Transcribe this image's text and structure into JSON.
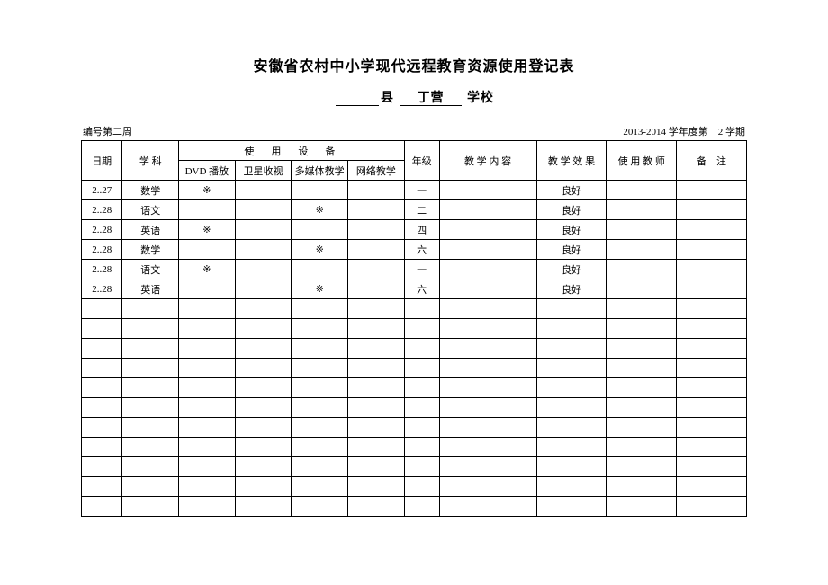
{
  "title": "安徽省农村中小学现代远程教育资源使用登记表",
  "subtitle": {
    "county_blank": "",
    "county_label": "县",
    "school_name": "丁营",
    "school_label": "学校"
  },
  "meta": {
    "left": "编号第二周",
    "right": "2013-2014 学年度第　2 学期"
  },
  "headers": {
    "date": "日期",
    "subject": "学 科",
    "equipment_group": "使　用　设　备",
    "eq_dvd": "DVD 播放",
    "eq_sat": "卫星收视",
    "eq_mm": "多媒体教学",
    "eq_net": "网络教学",
    "grade": "年级",
    "content": "教 学 内 容",
    "effect": "教 学 效 果",
    "teacher": "使 用 教 师",
    "note": "备　注"
  },
  "rows": [
    {
      "date": "2..27",
      "subject": "数学",
      "dvd": "※",
      "sat": "",
      "mm": "",
      "net": "",
      "grade": "一",
      "content": "",
      "effect": "良好",
      "teacher": "",
      "note": ""
    },
    {
      "date": "2..28",
      "subject": "语文",
      "dvd": "",
      "sat": "",
      "mm": "※",
      "net": "",
      "grade": "二",
      "content": "",
      "effect": "良好",
      "teacher": "",
      "note": ""
    },
    {
      "date": "2..28",
      "subject": "英语",
      "dvd": "※",
      "sat": "",
      "mm": "",
      "net": "",
      "grade": "四",
      "content": "",
      "effect": "良好",
      "teacher": "",
      "note": ""
    },
    {
      "date": "2..28",
      "subject": "数学",
      "dvd": "",
      "sat": "",
      "mm": "※",
      "net": "",
      "grade": "六",
      "content": "",
      "effect": "良好",
      "teacher": "",
      "note": ""
    },
    {
      "date": "2..28",
      "subject": "语文",
      "dvd": "※",
      "sat": "",
      "mm": "",
      "net": "",
      "grade": "一",
      "content": "",
      "effect": "良好",
      "teacher": "",
      "note": ""
    },
    {
      "date": "2..28",
      "subject": "英语",
      "dvd": "",
      "sat": "",
      "mm": "※",
      "net": "",
      "grade": "六",
      "content": "",
      "effect": "良好",
      "teacher": "",
      "note": ""
    },
    {
      "date": "",
      "subject": "",
      "dvd": "",
      "sat": "",
      "mm": "",
      "net": "",
      "grade": "",
      "content": "",
      "effect": "",
      "teacher": "",
      "note": ""
    },
    {
      "date": "",
      "subject": "",
      "dvd": "",
      "sat": "",
      "mm": "",
      "net": "",
      "grade": "",
      "content": "",
      "effect": "",
      "teacher": "",
      "note": ""
    },
    {
      "date": "",
      "subject": "",
      "dvd": "",
      "sat": "",
      "mm": "",
      "net": "",
      "grade": "",
      "content": "",
      "effect": "",
      "teacher": "",
      "note": ""
    },
    {
      "date": "",
      "subject": "",
      "dvd": "",
      "sat": "",
      "mm": "",
      "net": "",
      "grade": "",
      "content": "",
      "effect": "",
      "teacher": "",
      "note": ""
    },
    {
      "date": "",
      "subject": "",
      "dvd": "",
      "sat": "",
      "mm": "",
      "net": "",
      "grade": "",
      "content": "",
      "effect": "",
      "teacher": "",
      "note": ""
    },
    {
      "date": "",
      "subject": "",
      "dvd": "",
      "sat": "",
      "mm": "",
      "net": "",
      "grade": "",
      "content": "",
      "effect": "",
      "teacher": "",
      "note": ""
    },
    {
      "date": "",
      "subject": "",
      "dvd": "",
      "sat": "",
      "mm": "",
      "net": "",
      "grade": "",
      "content": "",
      "effect": "",
      "teacher": "",
      "note": ""
    },
    {
      "date": "",
      "subject": "",
      "dvd": "",
      "sat": "",
      "mm": "",
      "net": "",
      "grade": "",
      "content": "",
      "effect": "",
      "teacher": "",
      "note": ""
    },
    {
      "date": "",
      "subject": "",
      "dvd": "",
      "sat": "",
      "mm": "",
      "net": "",
      "grade": "",
      "content": "",
      "effect": "",
      "teacher": "",
      "note": ""
    },
    {
      "date": "",
      "subject": "",
      "dvd": "",
      "sat": "",
      "mm": "",
      "net": "",
      "grade": "",
      "content": "",
      "effect": "",
      "teacher": "",
      "note": ""
    },
    {
      "date": "",
      "subject": "",
      "dvd": "",
      "sat": "",
      "mm": "",
      "net": "",
      "grade": "",
      "content": "",
      "effect": "",
      "teacher": "",
      "note": ""
    }
  ]
}
